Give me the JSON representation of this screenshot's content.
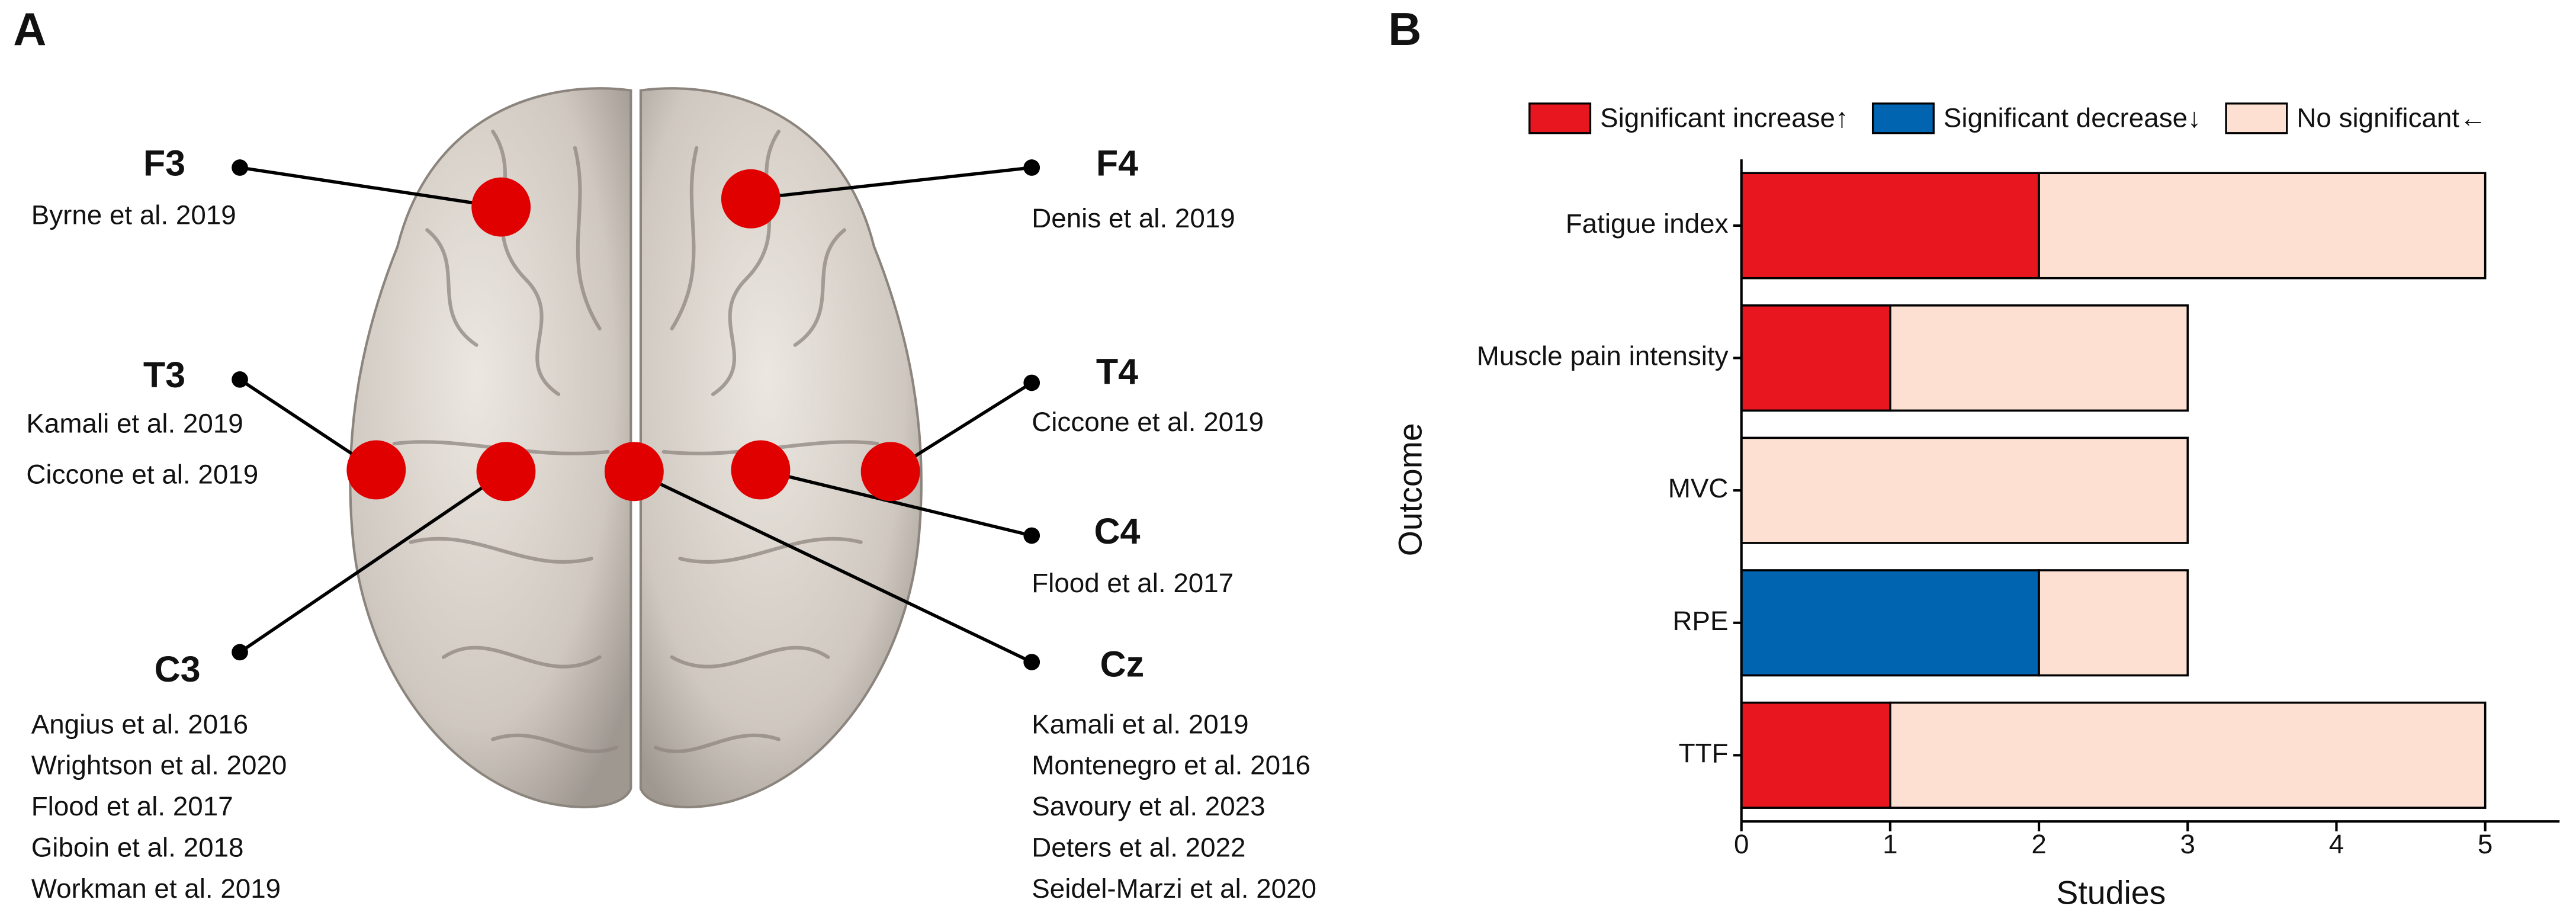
{
  "panel_a": {
    "label": "A",
    "electrodes": [
      {
        "name": "F3",
        "studies": [
          "Byrne et al. 2019"
        ]
      },
      {
        "name": "T3",
        "studies": [
          "Kamali et al. 2019",
          "Ciccone et al. 2019"
        ]
      },
      {
        "name": "C3",
        "studies": [
          "Angius et al. 2016",
          "Wrightson et al. 2020",
          "Flood et al. 2017",
          "Giboin et al. 2018",
          "Workman et al. 2019"
        ]
      },
      {
        "name": "F4",
        "studies": [
          "Denis et al. 2019"
        ]
      },
      {
        "name": "T4",
        "studies": [
          "Ciccone et al. 2019"
        ]
      },
      {
        "name": "C4",
        "studies": [
          "Flood et al. 2017"
        ]
      },
      {
        "name": "Cz",
        "studies": [
          "Kamali et al. 2019",
          "Montenegro et al. 2016",
          "Savoury et al. 2023",
          "Deters et al. 2022",
          "Seidel-Marzi et al. 2020"
        ]
      }
    ]
  },
  "chart_data": {
    "type": "stacked_bar_horizontal",
    "panel_label": "B",
    "categories": [
      "Fatigue index",
      "Muscle pain intensity",
      "MVC",
      "RPE",
      "TTF"
    ],
    "series": [
      {
        "name": "Significant increase↑",
        "color": "#e8161e",
        "values": [
          2,
          1,
          0,
          0,
          1
        ]
      },
      {
        "name": "Significant decrease↓",
        "color": "#0064b0",
        "values": [
          0,
          0,
          0,
          2,
          0
        ]
      },
      {
        "name": "No significant←",
        "color": "#fde0d2",
        "values": [
          3,
          2,
          3,
          1,
          4
        ]
      }
    ],
    "xlabel": "Studies",
    "ylabel": "Outcome",
    "xlim": [
      0,
      5.5
    ],
    "xticks": [
      0,
      1,
      2,
      3,
      4,
      5
    ],
    "legend": "top"
  }
}
